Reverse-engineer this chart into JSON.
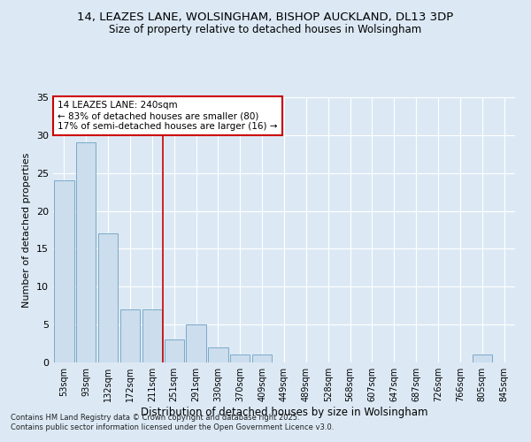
{
  "title": "14, LEAZES LANE, WOLSINGHAM, BISHOP AUCKLAND, DL13 3DP",
  "subtitle": "Size of property relative to detached houses in Wolsingham",
  "xlabel": "Distribution of detached houses by size in Wolsingham",
  "ylabel": "Number of detached properties",
  "bar_color": "#ccdded",
  "bar_edge_color": "#7aaac8",
  "background_color": "#dce9f5",
  "grid_color": "#ffffff",
  "vline_color": "#cc0000",
  "vline_x_index": 4.5,
  "categories": [
    "53sqm",
    "93sqm",
    "132sqm",
    "172sqm",
    "211sqm",
    "251sqm",
    "291sqm",
    "330sqm",
    "370sqm",
    "409sqm",
    "449sqm",
    "489sqm",
    "528sqm",
    "568sqm",
    "607sqm",
    "647sqm",
    "687sqm",
    "726sqm",
    "766sqm",
    "805sqm",
    "845sqm"
  ],
  "values": [
    24,
    29,
    17,
    7,
    7,
    3,
    5,
    2,
    1,
    1,
    0,
    0,
    0,
    0,
    0,
    0,
    0,
    0,
    0,
    1,
    0
  ],
  "annotation_line1": "14 LEAZES LANE: 240sqm",
  "annotation_line2": "← 83% of detached houses are smaller (80)",
  "annotation_line3": "17% of semi-detached houses are larger (16) →",
  "annotation_box_color": "#ffffff",
  "annotation_border_color": "#cc0000",
  "footer_text": "Contains HM Land Registry data © Crown copyright and database right 2025.\nContains public sector information licensed under the Open Government Licence v3.0.",
  "ylim": [
    0,
    35
  ],
  "yticks": [
    0,
    5,
    10,
    15,
    20,
    25,
    30,
    35
  ],
  "title_fontsize": 9.5,
  "subtitle_fontsize": 8.5,
  "ylabel_fontsize": 8,
  "xlabel_fontsize": 8.5,
  "tick_fontsize": 7,
  "annotation_fontsize": 7.5,
  "footer_fontsize": 6
}
